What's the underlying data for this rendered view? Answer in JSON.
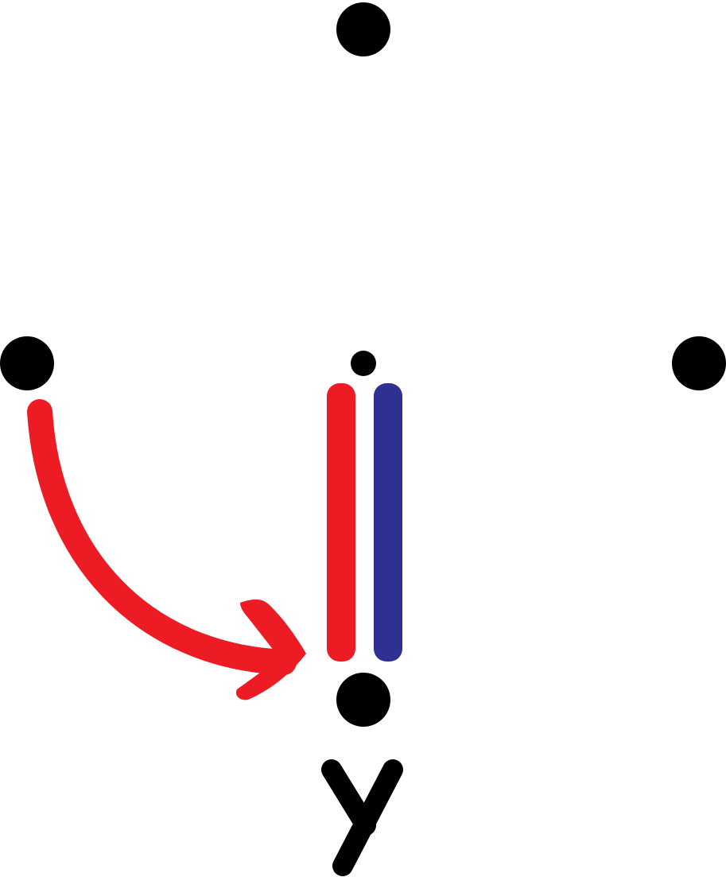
{
  "diagram": {
    "label": "y",
    "colors": {
      "dot": "#000000",
      "arrow": "#ed1c24",
      "bar_left": "#ed1c24",
      "bar_right": "#2e3192",
      "label": "#000000"
    }
  }
}
